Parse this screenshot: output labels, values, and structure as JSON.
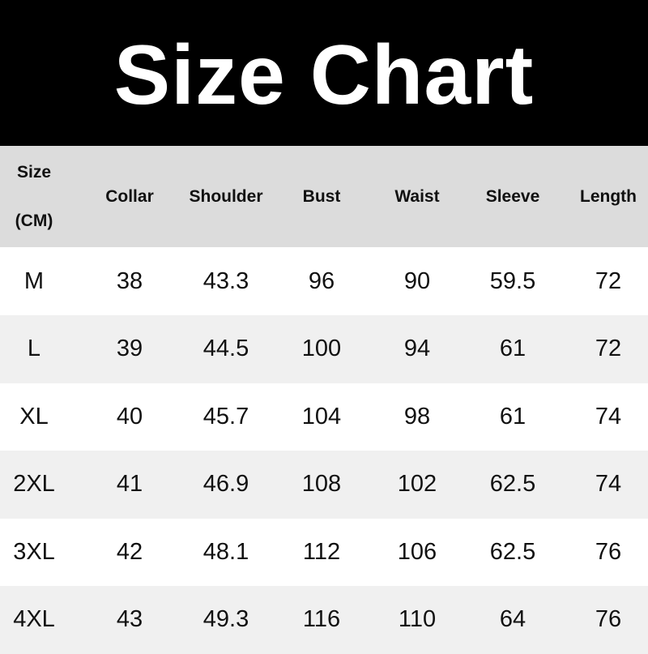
{
  "title": "Size Chart",
  "header": {
    "size_line1": "Size",
    "size_line2": "(CM)",
    "columns": [
      "Collar",
      "Shoulder",
      "Bust",
      "Waist",
      "Sleeve",
      "Length"
    ]
  },
  "rows": [
    [
      "M",
      "38",
      "43.3",
      "96",
      "90",
      "59.5",
      "72"
    ],
    [
      "L",
      "39",
      "44.5",
      "100",
      "94",
      "61",
      "72"
    ],
    [
      "XL",
      "40",
      "45.7",
      "104",
      "98",
      "61",
      "74"
    ],
    [
      "2XL",
      "41",
      "46.9",
      "108",
      "102",
      "62.5",
      "74"
    ],
    [
      "3XL",
      "42",
      "48.1",
      "112",
      "106",
      "62.5",
      "76"
    ],
    [
      "4XL",
      "43",
      "49.3",
      "116",
      "110",
      "64",
      "76"
    ]
  ]
}
